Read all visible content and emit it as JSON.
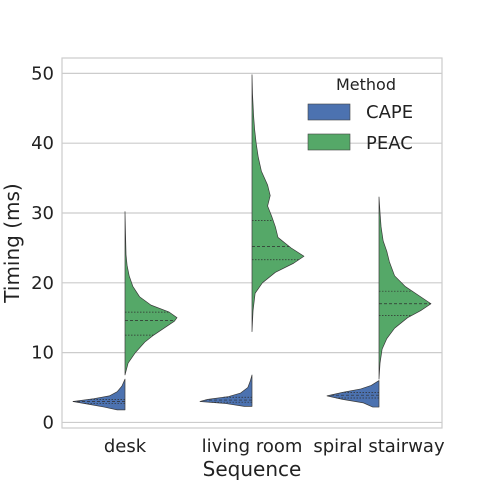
{
  "chart_data": {
    "type": "violin",
    "split": true,
    "inner": "quartile",
    "xlabel": "Sequence",
    "ylabel": "Timing (ms)",
    "categories": [
      "desk",
      "living room",
      "spiral stairway"
    ],
    "yticks": [
      0,
      10,
      20,
      30,
      40,
      50
    ],
    "ylim": [
      -0.8,
      52.2
    ],
    "grid": true,
    "legend": {
      "title": "Method",
      "placement": "top-right",
      "entries": [
        {
          "label": "CAPE",
          "color": "#4c72b0"
        },
        {
          "label": "PEAC",
          "color": "#55a868"
        }
      ]
    },
    "series": [
      {
        "name": "CAPE",
        "color": "#4c72b0",
        "side": "left",
        "violins": [
          {
            "category": "desk",
            "min": 1.8,
            "max": 6.2,
            "quartiles": [
              2.7,
              3.0,
              3.3
            ],
            "density": [
              [
                1.8,
                0.15
              ],
              [
                2.2,
                0.4
              ],
              [
                2.6,
                0.7
              ],
              [
                3.0,
                1.0
              ],
              [
                3.4,
                0.6
              ],
              [
                3.8,
                0.3
              ],
              [
                4.4,
                0.15
              ],
              [
                5.2,
                0.06
              ],
              [
                6.2,
                0.0
              ]
            ]
          },
          {
            "category": "living room",
            "min": 2.3,
            "max": 6.8,
            "quartiles": [
              2.9,
              3.2,
              3.6
            ],
            "density": [
              [
                2.3,
                0.15
              ],
              [
                2.7,
                0.5
              ],
              [
                3.0,
                1.0
              ],
              [
                3.3,
                0.85
              ],
              [
                3.7,
                0.45
              ],
              [
                4.2,
                0.22
              ],
              [
                5.0,
                0.08
              ],
              [
                6.0,
                0.03
              ],
              [
                6.8,
                0.0
              ]
            ]
          },
          {
            "category": "spiral stairway",
            "min": 2.2,
            "max": 6.0,
            "quartiles": [
              3.5,
              3.9,
              4.3
            ],
            "density": [
              [
                2.2,
                0.12
              ],
              [
                2.8,
                0.3
              ],
              [
                3.3,
                0.7
              ],
              [
                3.8,
                1.0
              ],
              [
                4.3,
                0.7
              ],
              [
                4.8,
                0.35
              ],
              [
                5.3,
                0.15
              ],
              [
                6.0,
                0.0
              ]
            ]
          }
        ]
      },
      {
        "name": "PEAC",
        "color": "#55a868",
        "side": "right",
        "violins": [
          {
            "category": "desk",
            "min": 6.8,
            "max": 30.2,
            "quartiles": [
              12.5,
              14.6,
              15.8
            ],
            "density": [
              [
                6.8,
                0.0
              ],
              [
                8.5,
                0.06
              ],
              [
                10,
                0.2
              ],
              [
                11.5,
                0.38
              ],
              [
                12.5,
                0.55
              ],
              [
                13.5,
                0.75
              ],
              [
                14.5,
                0.95
              ],
              [
                15,
                1.0
              ],
              [
                15.8,
                0.85
              ],
              [
                16.8,
                0.5
              ],
              [
                18,
                0.28
              ],
              [
                19.5,
                0.15
              ],
              [
                21,
                0.08
              ],
              [
                22.5,
                0.04
              ],
              [
                24,
                0.02
              ],
              [
                27,
                0.01
              ],
              [
                30.2,
                0.0
              ]
            ]
          },
          {
            "category": "living room",
            "min": 13.0,
            "max": 49.8,
            "quartiles": [
              23.3,
              25.2,
              28.9
            ],
            "density": [
              [
                13.0,
                0.0
              ],
              [
                16,
                0.02
              ],
              [
                18.5,
                0.06
              ],
              [
                20,
                0.2
              ],
              [
                21.5,
                0.45
              ],
              [
                22.8,
                0.8
              ],
              [
                23.8,
                1.0
              ],
              [
                25,
                0.75
              ],
              [
                26.5,
                0.5
              ],
              [
                28,
                0.45
              ],
              [
                29.5,
                0.38
              ],
              [
                31,
                0.3
              ],
              [
                32.5,
                0.35
              ],
              [
                34,
                0.3
              ],
              [
                36,
                0.18
              ],
              [
                38,
                0.12
              ],
              [
                40,
                0.08
              ],
              [
                42,
                0.05
              ],
              [
                44,
                0.03
              ],
              [
                47,
                0.01
              ],
              [
                49.8,
                0.0
              ]
            ]
          },
          {
            "category": "spiral stairway",
            "min": 6.2,
            "max": 32.3,
            "quartiles": [
              15.3,
              17.0,
              18.8
            ],
            "density": [
              [
                6.2,
                0.0
              ],
              [
                8.5,
                0.02
              ],
              [
                10.5,
                0.06
              ],
              [
                12,
                0.15
              ],
              [
                13.5,
                0.3
              ],
              [
                15,
                0.55
              ],
              [
                16,
                0.8
              ],
              [
                17,
                1.0
              ],
              [
                18,
                0.8
              ],
              [
                19.5,
                0.5
              ],
              [
                21,
                0.3
              ],
              [
                23,
                0.2
              ],
              [
                24.5,
                0.15
              ],
              [
                26,
                0.08
              ],
              [
                28,
                0.04
              ],
              [
                30,
                0.02
              ],
              [
                32.3,
                0.0
              ]
            ]
          }
        ]
      }
    ]
  }
}
